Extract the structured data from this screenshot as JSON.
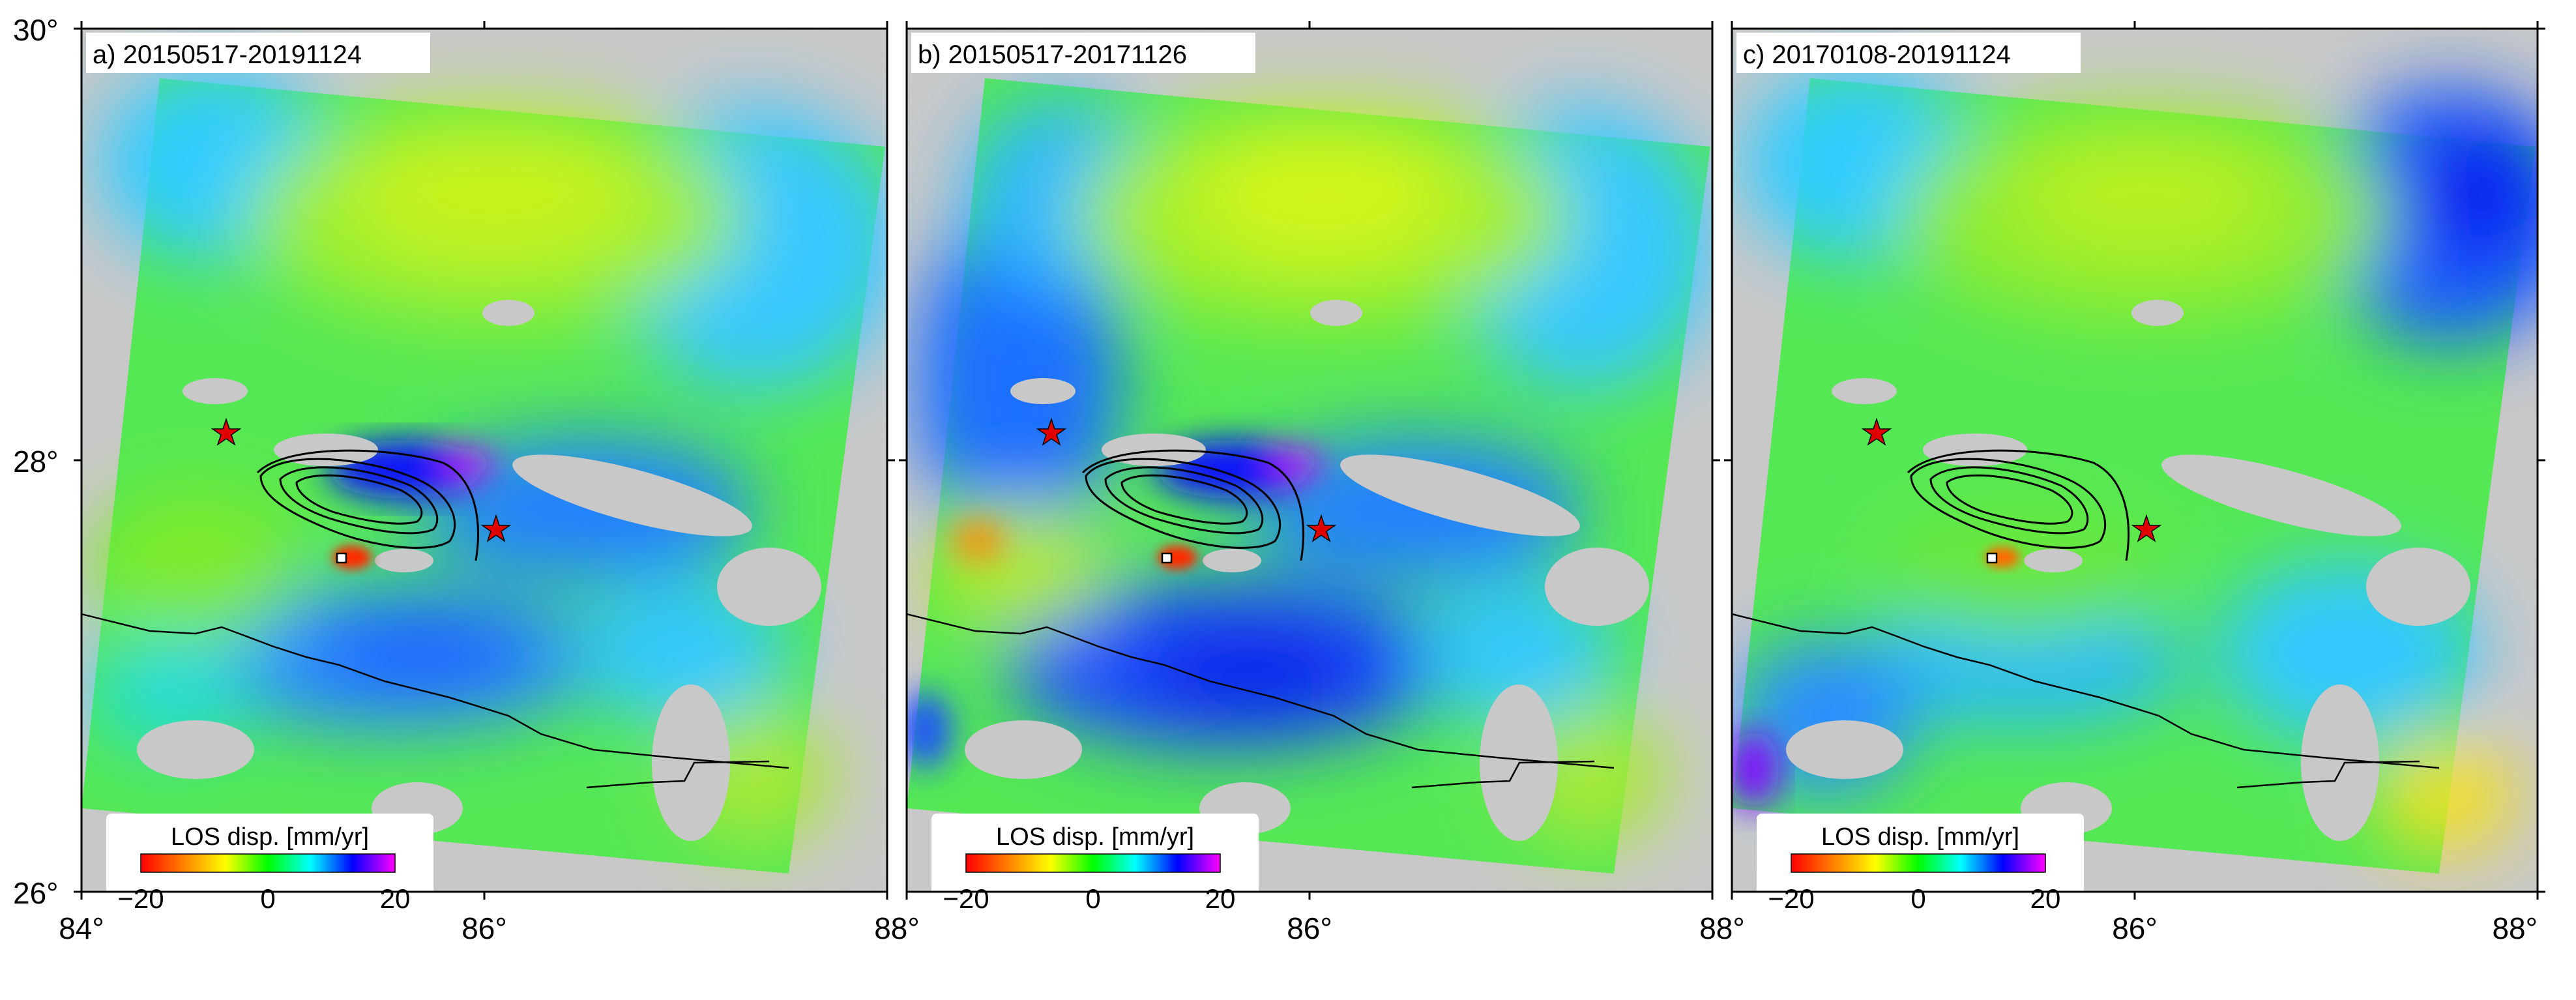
{
  "axes": {
    "x_ticks": [
      "84°",
      "86°",
      "88°",
      "86°",
      "88°",
      "86°",
      "88°"
    ],
    "y_ticks": [
      "30°",
      "28°",
      "26°"
    ]
  },
  "panels": [
    {
      "label": "a) 20150517-20191124",
      "variant": "a"
    },
    {
      "label": "b) 20150517-20171126",
      "variant": "b"
    },
    {
      "label": "c) 20170108-20191124",
      "variant": "c"
    }
  ],
  "colorbar": {
    "title": "LOS disp. [mm/yr]",
    "ticks": [
      "−20",
      "0",
      "20"
    ],
    "colors": [
      "#ff0000",
      "#ff8000",
      "#ffff00",
      "#00ff00",
      "#00ffff",
      "#0000ff",
      "#ff00ff"
    ]
  },
  "colors": {
    "background": "#c8c8c8",
    "star": "#e00000",
    "frame": "#000000"
  }
}
